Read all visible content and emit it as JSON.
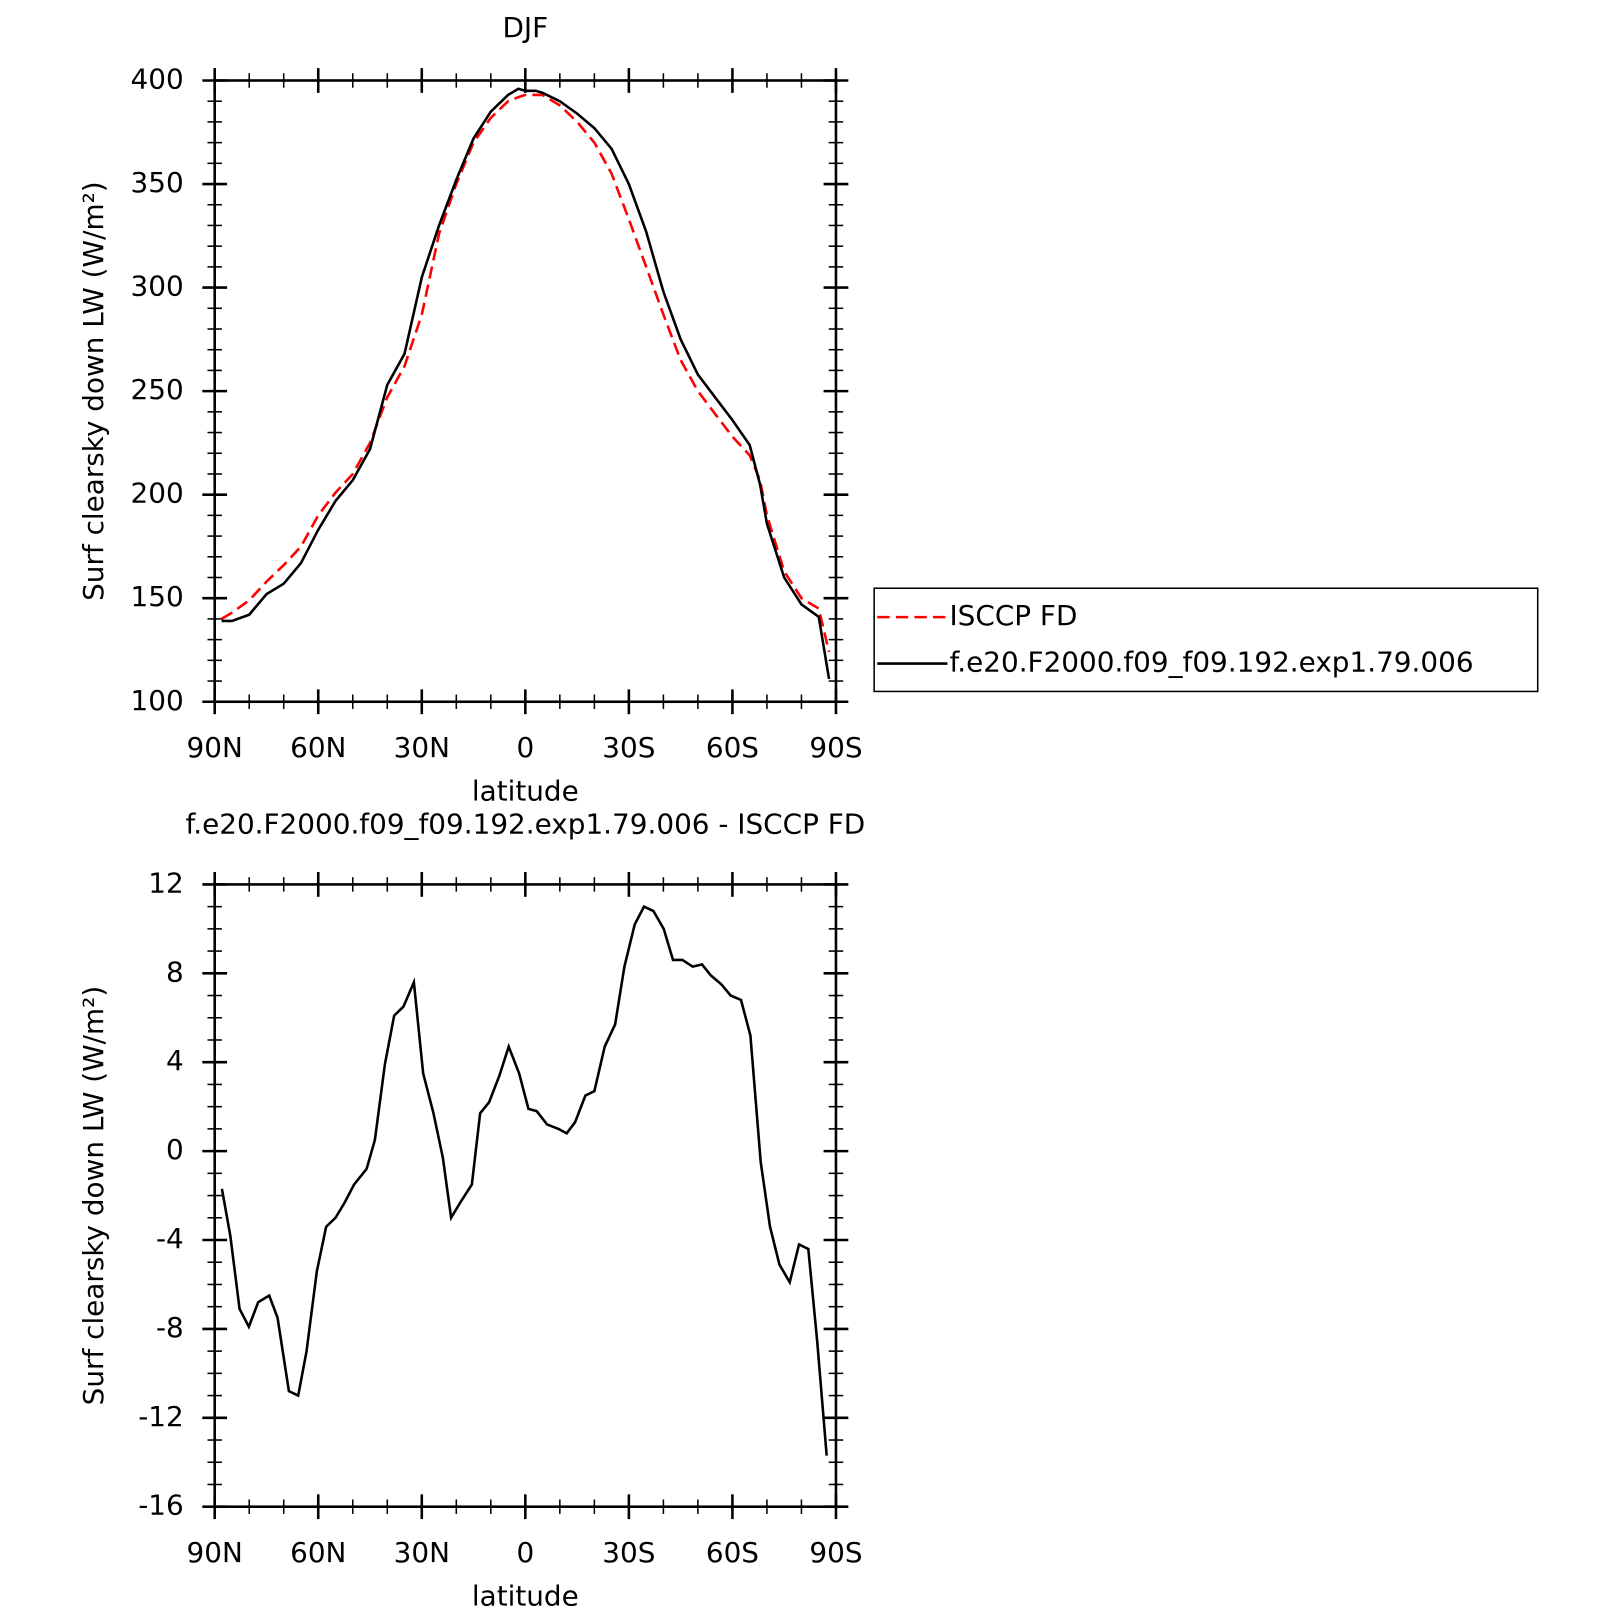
{
  "chart_data": [
    {
      "type": "line",
      "title": "DJF",
      "xlabel": "latitude",
      "ylabel": "Surf clearsky down LW (W/m²)",
      "x": [
        88,
        85,
        80,
        75,
        70,
        65,
        60,
        55,
        50,
        45,
        40,
        35,
        30,
        25,
        20,
        15,
        10,
        5,
        2,
        0,
        -3,
        -5,
        -10,
        -15,
        -20,
        -25,
        -30,
        -35,
        -40,
        -45,
        -50,
        -55,
        -60,
        -65,
        -68,
        -70,
        -75,
        -80,
        -85,
        -88
      ],
      "series": [
        {
          "name": "ISCCP FD",
          "color": "#ff0000",
          "linestyle": "dashed",
          "values": [
            140,
            143,
            149,
            158,
            166,
            175,
            190,
            201,
            210,
            225,
            247,
            262,
            287,
            326,
            350,
            370,
            382,
            390,
            392,
            393,
            393,
            393,
            388,
            380,
            370,
            355,
            333,
            310,
            287,
            265,
            250,
            239,
            228,
            219,
            207,
            190,
            163,
            150,
            145,
            124
          ]
        },
        {
          "name": "f.e20.F2000.f09_f09.192.exp1.79.006",
          "color": "#000000",
          "linestyle": "solid",
          "values": [
            139,
            139,
            142,
            152,
            157,
            167,
            183,
            197,
            207,
            222,
            253,
            268,
            305,
            330,
            352,
            372,
            385,
            393,
            396,
            395,
            395,
            394,
            390,
            384,
            377,
            367,
            350,
            327,
            298,
            275,
            258,
            247,
            236,
            224,
            205,
            186,
            160,
            147,
            141,
            111
          ]
        }
      ],
      "xlim": [
        90,
        -90
      ],
      "xticks": [
        {
          "value": 90,
          "label": "90N"
        },
        {
          "value": 60,
          "label": "60N"
        },
        {
          "value": 30,
          "label": "30N"
        },
        0,
        {
          "value": -30,
          "label": "30S"
        },
        {
          "value": -60,
          "label": "60S"
        },
        {
          "value": -90,
          "label": "90S"
        }
      ],
      "ylim": [
        100,
        400
      ],
      "yticks": [
        100,
        150,
        200,
        250,
        300,
        350,
        400
      ],
      "legend": "right"
    },
    {
      "type": "line",
      "title": "f.e20.F2000.f09_f09.192.exp1.79.006 - ISCCP FD",
      "xlabel": "latitude",
      "ylabel": "Surf clearsky down LW (W/m²)",
      "x": [
        87.9,
        85.5,
        82.8,
        80.1,
        77.4,
        74.2,
        71.8,
        68.5,
        65.8,
        63.4,
        60.4,
        57.7,
        55.0,
        52.3,
        49.6,
        46.0,
        43.6,
        40.7,
        38.0,
        35.3,
        32.3,
        29.6,
        26.6,
        23.9,
        21.5,
        18.8,
        15.5,
        13.1,
        10.5,
        7.5,
        4.8,
        1.8,
        -0.9,
        -3.3,
        -6.3,
        -9.6,
        -12.0,
        -14.4,
        -17.4,
        -20.0,
        -23.0,
        -26.0,
        -28.7,
        -31.7,
        -34.4,
        -37.1,
        -40.1,
        -42.8,
        -45.5,
        -48.5,
        -51.2,
        -53.8,
        -56.8,
        -59.5,
        -62.5,
        -65.2,
        -68.2,
        -70.9,
        -73.6,
        -76.6,
        -79.3,
        -82.0,
        -84.6,
        -87.3
      ],
      "series": [
        {
          "name": "f.e20.F2000.f09_f09.192.exp1.79.006 - ISCCP FD",
          "color": "#000000",
          "linestyle": "solid",
          "values": [
            -1.7,
            -3.8,
            -7.1,
            -7.9,
            -6.8,
            -6.5,
            -7.5,
            -10.8,
            -11.0,
            -9.0,
            -5.4,
            -3.4,
            -3.0,
            -2.3,
            -1.5,
            -0.8,
            0.5,
            3.9,
            6.1,
            6.5,
            7.6,
            3.5,
            1.7,
            -0.3,
            -3.0,
            -2.3,
            -1.5,
            1.7,
            2.2,
            3.4,
            4.7,
            3.5,
            1.9,
            1.8,
            1.2,
            1.0,
            0.8,
            1.3,
            2.5,
            2.7,
            4.7,
            5.7,
            8.3,
            10.2,
            11.0,
            10.8,
            10.0,
            8.6,
            8.6,
            8.3,
            8.4,
            7.9,
            7.5,
            7.0,
            6.8,
            5.2,
            -0.5,
            -3.4,
            -5.1,
            -5.9,
            -4.2,
            -4.4,
            -8.6,
            -13.7
          ]
        }
      ],
      "xlim": [
        90,
        -90
      ],
      "xticks": [
        {
          "value": 90,
          "label": "90N"
        },
        {
          "value": 60,
          "label": "60N"
        },
        {
          "value": 30,
          "label": "30N"
        },
        0,
        {
          "value": -30,
          "label": "30S"
        },
        {
          "value": -60,
          "label": "60S"
        },
        {
          "value": -90,
          "label": "90S"
        }
      ],
      "ylim": [
        -16,
        12
      ],
      "yticks": [
        -16,
        -12,
        -8,
        -4,
        0,
        4,
        8,
        12
      ]
    }
  ]
}
